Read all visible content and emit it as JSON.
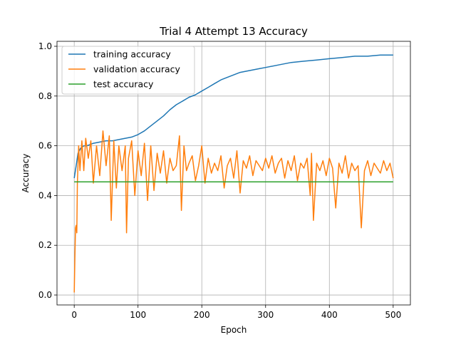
{
  "chart_data": {
    "type": "line",
    "title": "Trial 4 Attempt 13 Accuracy",
    "xlabel": "Epoch",
    "ylabel": "Accuracy",
    "xlim": [
      -27,
      527
    ],
    "ylim": [
      -0.04,
      1.02
    ],
    "xticks": [
      0,
      100,
      200,
      300,
      400,
      500
    ],
    "yticks": [
      0.0,
      0.2,
      0.4,
      0.6,
      0.8,
      1.0
    ],
    "ytick_labels": [
      "0.0",
      "0.2",
      "0.4",
      "0.6",
      "0.8",
      "1.0"
    ],
    "grid": true,
    "legend_position": "upper-left",
    "series": [
      {
        "name": "training accuracy",
        "color": "#1f77b4",
        "x": [
          0,
          3,
          6,
          10,
          15,
          20,
          30,
          40,
          50,
          60,
          70,
          80,
          90,
          100,
          110,
          120,
          130,
          140,
          150,
          160,
          170,
          180,
          190,
          200,
          210,
          220,
          230,
          240,
          250,
          260,
          270,
          280,
          290,
          300,
          320,
          340,
          360,
          380,
          400,
          420,
          440,
          460,
          480,
          500
        ],
        "y": [
          0.47,
          0.52,
          0.57,
          0.59,
          0.6,
          0.6,
          0.61,
          0.615,
          0.62,
          0.62,
          0.625,
          0.63,
          0.635,
          0.645,
          0.66,
          0.68,
          0.7,
          0.72,
          0.745,
          0.765,
          0.78,
          0.795,
          0.805,
          0.82,
          0.835,
          0.85,
          0.865,
          0.875,
          0.885,
          0.895,
          0.9,
          0.905,
          0.91,
          0.915,
          0.925,
          0.935,
          0.94,
          0.945,
          0.95,
          0.955,
          0.96,
          0.96,
          0.965,
          0.965
        ]
      },
      {
        "name": "validation accuracy",
        "color": "#ff7f0e",
        "x": [
          0,
          1,
          2,
          3,
          4,
          5,
          7,
          9,
          12,
          15,
          18,
          22,
          26,
          30,
          35,
          40,
          45,
          50,
          55,
          58,
          62,
          66,
          70,
          75,
          80,
          82,
          85,
          90,
          95,
          100,
          105,
          110,
          115,
          120,
          125,
          130,
          135,
          140,
          145,
          150,
          155,
          160,
          165,
          168,
          172,
          176,
          180,
          185,
          190,
          195,
          200,
          205,
          210,
          215,
          220,
          225,
          230,
          235,
          240,
          245,
          250,
          255,
          260,
          265,
          270,
          275,
          280,
          285,
          290,
          295,
          300,
          305,
          310,
          315,
          320,
          325,
          330,
          335,
          340,
          345,
          350,
          355,
          360,
          365,
          370,
          372,
          375,
          380,
          385,
          390,
          395,
          400,
          405,
          410,
          415,
          420,
          425,
          430,
          435,
          440,
          445,
          450,
          455,
          460,
          465,
          470,
          475,
          480,
          485,
          490,
          495,
          500
        ],
        "y": [
          0.01,
          0.15,
          0.27,
          0.28,
          0.25,
          0.45,
          0.6,
          0.5,
          0.62,
          0.5,
          0.63,
          0.55,
          0.62,
          0.45,
          0.6,
          0.48,
          0.66,
          0.52,
          0.64,
          0.3,
          0.62,
          0.43,
          0.6,
          0.5,
          0.6,
          0.25,
          0.55,
          0.62,
          0.4,
          0.58,
          0.48,
          0.61,
          0.38,
          0.6,
          0.42,
          0.57,
          0.49,
          0.58,
          0.45,
          0.55,
          0.5,
          0.52,
          0.64,
          0.34,
          0.6,
          0.5,
          0.53,
          0.56,
          0.46,
          0.52,
          0.6,
          0.45,
          0.55,
          0.49,
          0.53,
          0.5,
          0.56,
          0.43,
          0.52,
          0.55,
          0.47,
          0.58,
          0.41,
          0.54,
          0.51,
          0.56,
          0.48,
          0.54,
          0.52,
          0.5,
          0.55,
          0.51,
          0.56,
          0.49,
          0.53,
          0.55,
          0.47,
          0.54,
          0.5,
          0.56,
          0.46,
          0.53,
          0.51,
          0.55,
          0.4,
          0.57,
          0.3,
          0.53,
          0.5,
          0.54,
          0.48,
          0.55,
          0.51,
          0.35,
          0.53,
          0.49,
          0.56,
          0.47,
          0.53,
          0.5,
          0.52,
          0.27,
          0.5,
          0.54,
          0.48,
          0.53,
          0.51,
          0.49,
          0.54,
          0.5,
          0.53,
          0.47
        ]
      },
      {
        "name": "test accuracy",
        "color": "#2ca02c",
        "x": [
          0,
          500
        ],
        "y": [
          0.455,
          0.455
        ]
      }
    ]
  }
}
